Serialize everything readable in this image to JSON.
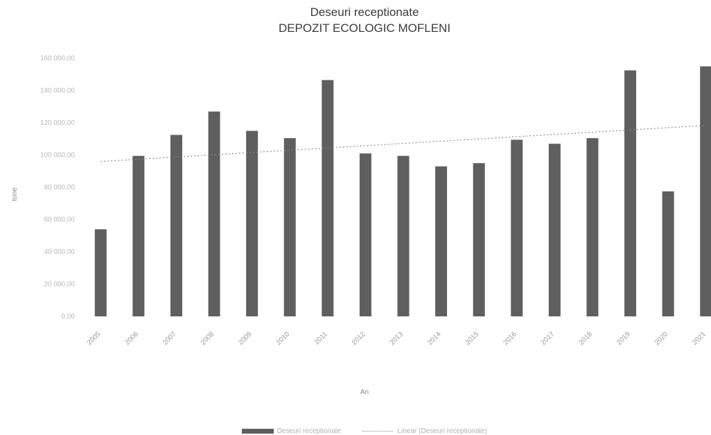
{
  "chart_data": {
    "type": "bar",
    "title": "Deseuri receptionate",
    "subtitle": "DEPOZIT ECOLOGIC MOFLENI",
    "xlabel": "An",
    "ylabel": "tone",
    "ylim": [
      0,
      160000
    ],
    "yticks": [
      "0,00",
      "20 000,00",
      "40 000,00",
      "60 000,00",
      "80 000,00",
      "100 000,00",
      "120 000,00",
      "140 000,00",
      "160 000,00"
    ],
    "categories": [
      "2005",
      "2006",
      "2007",
      "2008",
      "2009",
      "2010",
      "2011",
      "2012",
      "2013",
      "2014",
      "2015",
      "2016",
      "2017",
      "2018",
      "2019",
      "2020",
      "2021"
    ],
    "series": [
      {
        "name": "Deseuri receptionate",
        "type": "bar",
        "color": "#5f5f5f",
        "values": [
          54000,
          99500,
          112500,
          127000,
          115000,
          110500,
          146500,
          101000,
          99500,
          93000,
          95000,
          109500,
          107000,
          110500,
          152500,
          77500,
          155000
        ]
      },
      {
        "name": "Linear (Deseuri receptionate)",
        "type": "trendline",
        "style": "dotted",
        "color": "#8a8a8a",
        "values": [
          96000,
          97400,
          98800,
          100200,
          101600,
          103000,
          104400,
          105800,
          107200,
          108600,
          110000,
          111400,
          112800,
          114200,
          115600,
          117000,
          118400
        ]
      }
    ],
    "legend_position": "bottom",
    "grid": false
  }
}
